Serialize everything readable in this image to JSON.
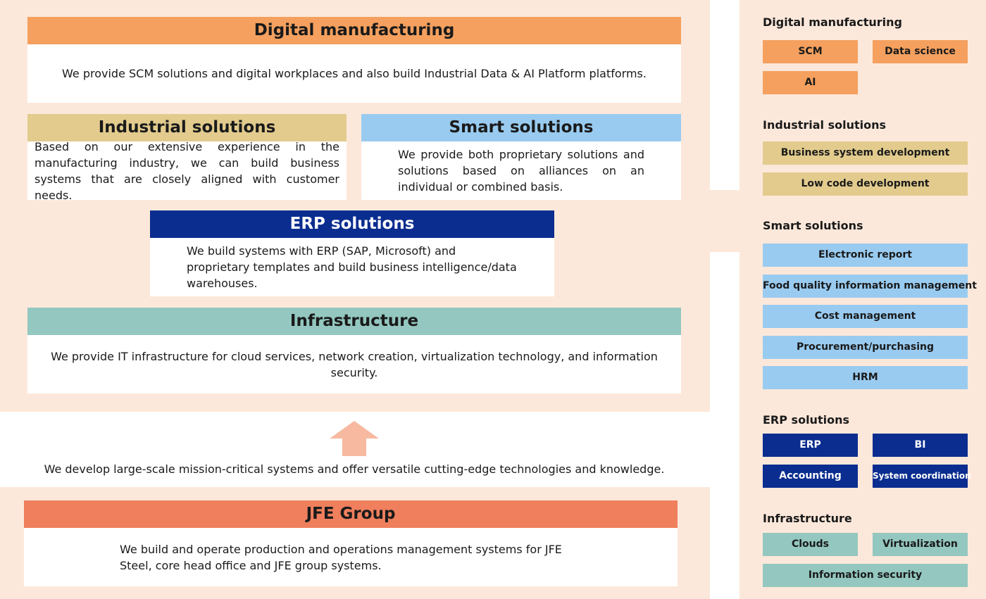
{
  "panels": [
    {
      "title": "Digital manufacturing",
      "text": "We provide SCM solutions and digital workplaces and also build Industrial Data & AI Platform platforms."
    },
    {
      "title": "Industrial solutions",
      "text": "Based on our extensive experience in the manufacturing industry, we can build business systems that are closely aligned with customer needs."
    },
    {
      "title": "Smart solutions",
      "text": "We provide both proprietary solutions and solutions based on alliances on an individual or combined basis."
    },
    {
      "title": "ERP solutions",
      "text": "We build systems with ERP (SAP, Microsoft) and proprietary templates and build business intelligence/data warehouses."
    },
    {
      "title": "Infrastructure",
      "text": "We provide IT infrastructure for cloud services, network creation, virtualization technology, and information security."
    }
  ],
  "bridge": {
    "text": "We develop large-scale mission-critical systems and offer versatile cutting-edge technologies and knowledge."
  },
  "jfe": {
    "title": "JFE Group",
    "text": "We build and operate production and operations management systems for JFE Steel, core head office and JFE group systems."
  },
  "sidebar": [
    {
      "name": "Digital manufacturing",
      "items": [
        "SCM",
        "Data science",
        "AI"
      ]
    },
    {
      "name": "Industrial solutions",
      "items": [
        "Business system development",
        "Low code development"
      ]
    },
    {
      "name": "Smart solutions",
      "items": [
        "Electronic report",
        "Food quality information management",
        "Cost management",
        "Procurement/purchasing",
        "HRM"
      ]
    },
    {
      "name": "ERP solutions",
      "items": [
        "ERP",
        "BI",
        "Accounting",
        "System coordination"
      ]
    },
    {
      "name": "Infrastructure",
      "items": [
        "Clouds",
        "Virtualization",
        "Information security"
      ]
    }
  ]
}
